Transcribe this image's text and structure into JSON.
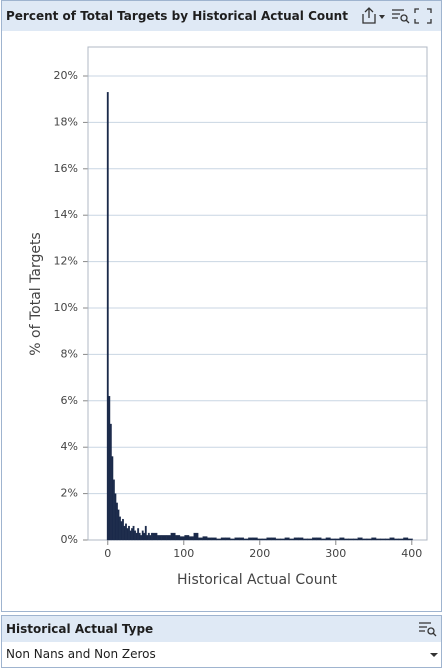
{
  "chart_data": {
    "type": "histogram",
    "title": "Percent of Total Targets by Historical Actual Count",
    "x_label": "Historical Actual Count",
    "y_label": "% of Total Targets",
    "color": "#1b2a4a",
    "grid": true,
    "bins": [
      -1,
      1,
      3,
      5,
      7,
      9,
      11,
      13,
      15,
      17,
      19,
      21,
      23,
      25,
      27,
      29,
      31,
      33,
      35,
      37,
      39,
      41,
      43,
      45,
      47,
      49,
      51,
      53,
      55,
      57,
      59,
      65,
      71,
      77,
      83,
      89,
      95,
      101,
      107,
      113,
      119,
      125,
      131,
      137,
      143,
      149,
      155,
      161,
      167,
      173,
      179,
      185,
      191,
      197,
      203,
      209,
      215,
      221,
      227,
      233,
      239,
      245,
      251,
      257,
      263,
      269,
      275,
      281,
      287,
      293,
      299,
      305,
      311,
      317,
      323,
      329,
      335,
      341,
      347,
      353,
      359,
      365,
      371,
      377,
      383,
      389,
      395,
      401
    ],
    "values": [
      19.3,
      6.2,
      5.0,
      3.6,
      2.6,
      2.0,
      1.6,
      1.3,
      1.0,
      0.8,
      0.9,
      0.6,
      0.7,
      0.5,
      0.6,
      0.4,
      0.5,
      0.6,
      0.4,
      0.3,
      0.5,
      0.3,
      0.2,
      0.4,
      0.3,
      0.6,
      0.2,
      0.3,
      0.2,
      0.3,
      0.3,
      0.2,
      0.2,
      0.2,
      0.3,
      0.2,
      0.15,
      0.2,
      0.15,
      0.3,
      0.1,
      0.15,
      0.1,
      0.1,
      0.05,
      0.1,
      0.1,
      0.05,
      0.1,
      0.1,
      0.05,
      0.1,
      0.1,
      0.05,
      0.05,
      0.1,
      0.1,
      0.05,
      0.05,
      0.1,
      0.05,
      0.1,
      0.1,
      0.05,
      0.05,
      0.1,
      0.1,
      0.05,
      0.1,
      0.05,
      0.05,
      0.1,
      0.05,
      0.05,
      0.05,
      0.1,
      0.05,
      0.05,
      0.1,
      0.05,
      0.05,
      0.05,
      0.1,
      0.05,
      0.05,
      0.1,
      0.05
    ],
    "xlim": [
      -26,
      420
    ],
    "xticks": [
      0,
      100,
      200,
      300,
      400
    ],
    "ylim": [
      0,
      21.25
    ],
    "yticks": [
      {
        "value": 0,
        "label": "0%"
      },
      {
        "value": 2,
        "label": "2%"
      },
      {
        "value": 4,
        "label": "4%"
      },
      {
        "value": 6,
        "label": "6%"
      },
      {
        "value": 8,
        "label": "8%"
      },
      {
        "value": 10,
        "label": "10%"
      },
      {
        "value": 12,
        "label": "12%"
      },
      {
        "value": 14,
        "label": "14%"
      },
      {
        "value": 16,
        "label": "16%"
      },
      {
        "value": 18,
        "label": "18%"
      },
      {
        "value": 20,
        "label": "20%"
      }
    ]
  },
  "filter_panel": {
    "title": "Historical Actual Type",
    "selected": "Non Nans and Non Zeros"
  }
}
